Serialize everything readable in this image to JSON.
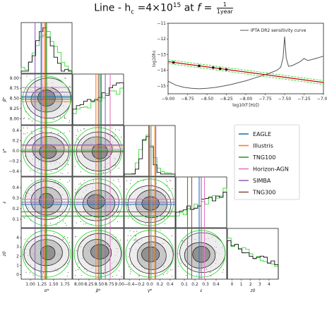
{
  "title": {
    "prefix": "Line - h",
    "sub": "c",
    "mid": " =4×10",
    "sup": "15",
    "at": " at ",
    "fvar": "f",
    "eq": " = ",
    "frac_num": "1",
    "frac_den": "1year"
  },
  "colors": {
    "EAGLE": "#1f77b4",
    "Illustris": "#ff7f0e",
    "TNG100": "#2ca02c",
    "Horizon-AGN": "#e377c2",
    "SIMBA": "#9467bd",
    "TNG300": "#8c564b",
    "posterior": "#111111",
    "prior": "#33dd33",
    "signal": "#cc0000"
  },
  "chart_data": [
    {
      "type": "line",
      "panel": "sensitivity",
      "xlabel": "log10(f [Hz])",
      "ylabel": "log10hc",
      "xlim": [
        -9.0,
        -7.0
      ],
      "ylim": [
        -15.5,
        -11.0
      ],
      "xticks": [
        "−9.00",
        "−8.75",
        "−8.50",
        "−8.25",
        "−8.00",
        "−7.75",
        "−7.50",
        "−7.25",
        "−7.00"
      ],
      "yticks": [
        "−11",
        "−12",
        "−13",
        "−14",
        "−15"
      ],
      "legend": [
        "IPTA DR2 sensitivity curve"
      ],
      "legend_position": "top-right",
      "sensitivity_curve": {
        "x": [
          -9.0,
          -8.9,
          -8.8,
          -8.7,
          -8.6,
          -8.5,
          -8.4,
          -8.3,
          -8.2,
          -8.1,
          -8.0,
          -7.9,
          -7.8,
          -7.7,
          -7.6,
          -7.55,
          -7.52,
          -7.5,
          -7.48,
          -7.45,
          -7.4,
          -7.3,
          -7.25,
          -7.2,
          -7.1,
          -7.0
        ],
        "y": [
          -14.7,
          -14.95,
          -15.08,
          -15.15,
          -15.18,
          -15.15,
          -15.1,
          -15.02,
          -14.92,
          -14.8,
          -14.67,
          -14.52,
          -14.36,
          -14.2,
          -14.0,
          -13.8,
          -13.2,
          -11.85,
          -13.2,
          -13.75,
          -13.7,
          -13.45,
          -13.25,
          -13.38,
          -13.25,
          -13.1
        ]
      },
      "signal_line": {
        "x": [
          -9.0,
          -7.0
        ],
        "y": [
          -13.45,
          -14.78
        ]
      },
      "signal_band_upper": {
        "x": [
          -9.0,
          -7.0
        ],
        "y": [
          -13.33,
          -14.66
        ]
      },
      "signal_band_lower": {
        "x": [
          -9.0,
          -7.0
        ],
        "y": [
          -13.57,
          -14.9
        ]
      },
      "points": {
        "x": [
          -8.93,
          -8.6,
          -8.42,
          -8.33,
          -8.25
        ],
        "y": [
          -13.5,
          -13.72,
          -13.83,
          -13.9,
          -13.95
        ]
      }
    },
    {
      "type": "corner",
      "parameters": [
        "α*",
        "β*",
        "γ*",
        "ε",
        "z0"
      ],
      "tick_labels": {
        "α*": [
          "1.00",
          "1.25",
          "1.50",
          "1.75"
        ],
        "β*": [
          "8.00",
          "8.25",
          "8.50",
          "8.75",
          "9.00"
        ],
        "γ*": [
          "−0.4",
          "−0.2",
          "0.0",
          "0.2",
          "0.4"
        ],
        "ε": [
          "0.1",
          "0.2",
          "0.3",
          "0.4"
        ],
        "z0": [
          "0",
          "1",
          "2",
          "3",
          "4"
        ]
      },
      "ranges": {
        "α*": [
          0.8,
          1.9
        ],
        "β*": [
          7.85,
          9.1
        ],
        "γ*": [
          -0.5,
          0.5
        ],
        "ε": [
          0.02,
          0.5
        ],
        "z0": [
          -0.5,
          5.0
        ]
      },
      "series": [
        {
          "name": "EAGLE",
          "values": [
            1.23,
            8.55,
            0.0,
            0.24,
            0.0
          ]
        },
        {
          "name": "Illustris",
          "values": [
            1.3,
            8.42,
            0.1,
            0.13,
            0.0
          ]
        },
        {
          "name": "TNG100",
          "values": [
            1.35,
            8.52,
            0.0,
            0.13,
            0.0
          ]
        },
        {
          "name": "Horizon-AGN",
          "values": [
            1.25,
            8.77,
            0.03,
            0.29,
            0.0
          ]
        },
        {
          "name": "SIMBA",
          "values": [
            1.1,
            8.65,
            0.12,
            0.26,
            0.0
          ]
        },
        {
          "name": "TNG300",
          "values": [
            1.33,
            8.48,
            -0.02,
            0.17,
            0.0
          ]
        }
      ],
      "legend_position": "right"
    }
  ]
}
